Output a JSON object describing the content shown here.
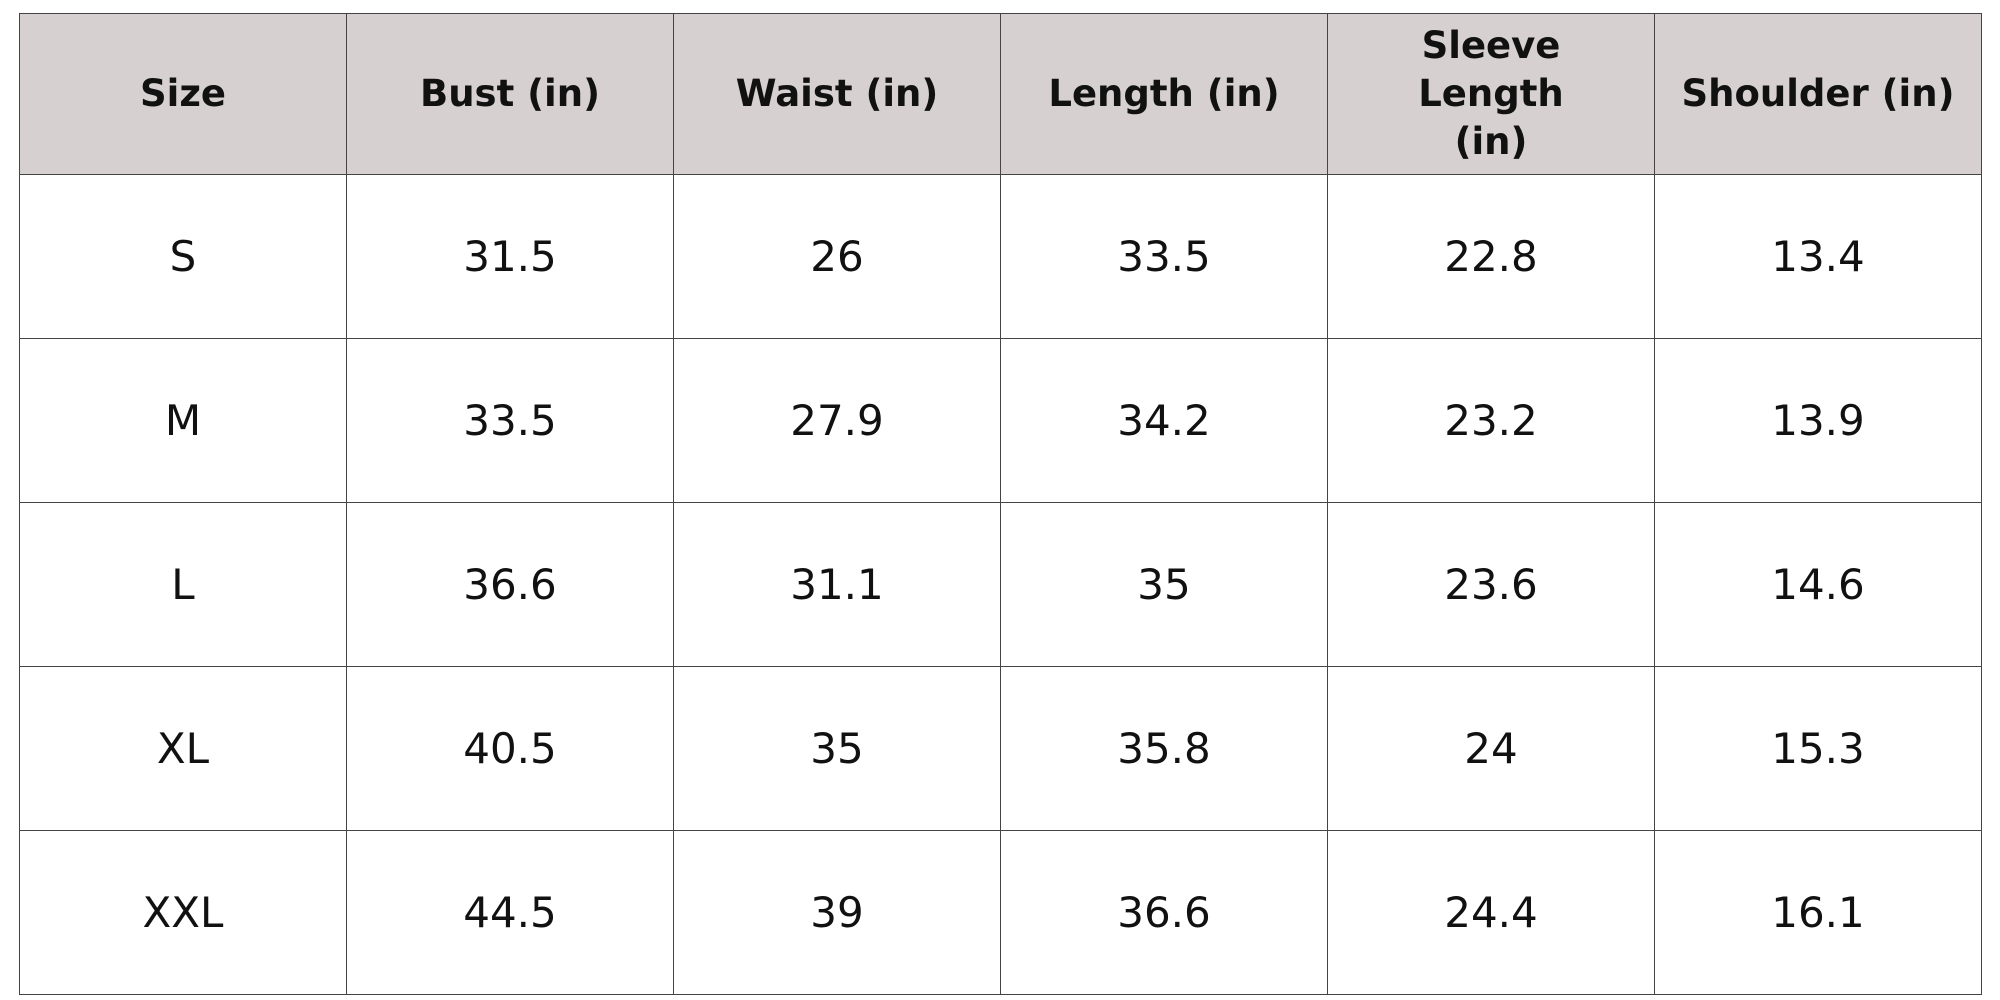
{
  "table": {
    "headers": [
      "Size",
      "Bust (in)",
      "Waist (in)",
      "Length (in)",
      "Sleeve Length (in)",
      "Shoulder (in)"
    ],
    "rows": [
      [
        "S",
        31.5,
        26,
        33.5,
        22.8,
        13.4
      ],
      [
        "M",
        33.5,
        27.9,
        34.2,
        23.2,
        13.9
      ],
      [
        "L",
        36.6,
        31.1,
        35,
        23.6,
        14.6
      ],
      [
        "XL",
        40.5,
        35,
        35.8,
        24,
        15.3
      ],
      [
        "XXL",
        44.5,
        39,
        36.6,
        24.4,
        16.1
      ]
    ]
  }
}
